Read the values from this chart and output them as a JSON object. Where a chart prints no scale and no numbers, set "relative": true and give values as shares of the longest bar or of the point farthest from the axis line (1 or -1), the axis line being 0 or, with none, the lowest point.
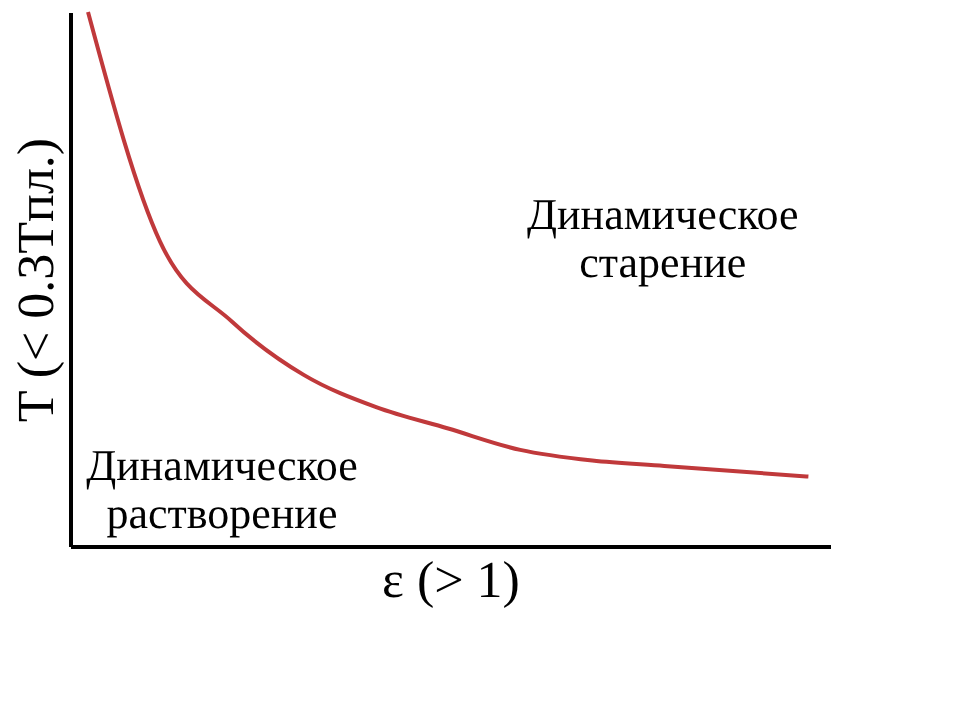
{
  "chart_data": {
    "type": "line",
    "relative": true,
    "xlabel": "ε (> 1)",
    "ylabel": "T (< 0.3Tпл.)",
    "categories": [
      null,
      null,
      null,
      null,
      null,
      null,
      null,
      null,
      null,
      null,
      null
    ],
    "series": [
      {
        "color": "#c0393b",
        "values": [
          1,
          0.57,
          0.42,
          0.32,
          0.26,
          0.22,
          0.18,
          0.16,
          0.15,
          0.14,
          0.13
        ]
      }
    ],
    "annotations": [
      "Динамическое\nстарение",
      "Динамическое\nрастворение"
    ],
    "grid": false,
    "marker": "none",
    "line_style": "solid"
  }
}
